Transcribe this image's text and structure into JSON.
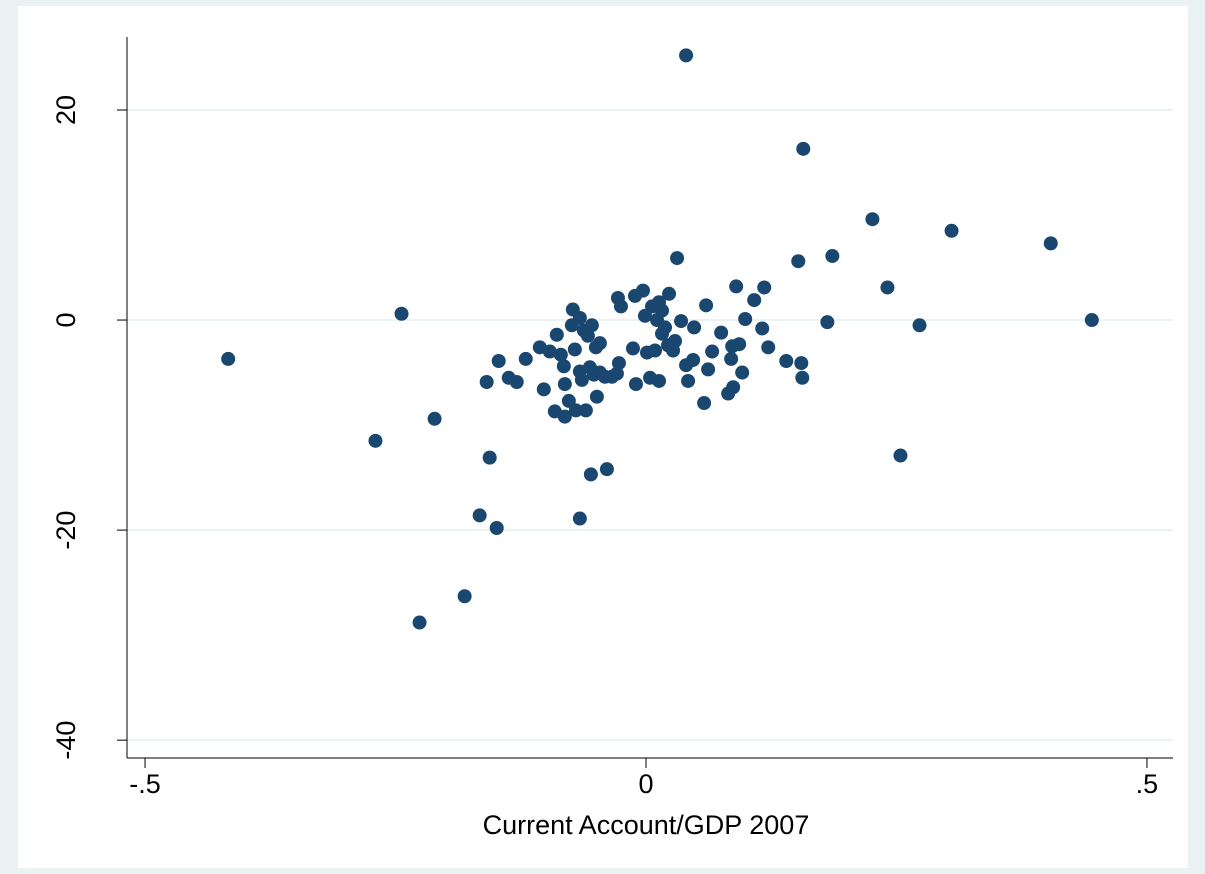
{
  "chart_data": {
    "type": "scatter",
    "x_label": "Current Account/GDP 2007",
    "color": "#1a476f",
    "grid": true,
    "xlim": [
      -0.518,
      0.526
    ],
    "ylim": [
      -41.7,
      26.95
    ],
    "xticks": [
      {
        "value": -0.5,
        "label": "-.5"
      },
      0,
      {
        "value": 0.5,
        "label": ".5"
      }
    ],
    "yticks": [
      -40,
      -20,
      0,
      20
    ],
    "x": [
      -0.417,
      -0.244,
      -0.27,
      -0.211,
      -0.226,
      -0.181,
      -0.166,
      -0.149,
      -0.156,
      -0.159,
      -0.147,
      -0.137,
      -0.129,
      -0.12,
      -0.106,
      -0.102,
      -0.096,
      -0.091,
      -0.089,
      -0.085,
      -0.082,
      -0.081,
      -0.081,
      -0.077,
      -0.073,
      -0.074,
      -0.071,
      -0.07,
      -0.066,
      -0.066,
      -0.064,
      -0.066,
      -0.062,
      -0.06,
      -0.058,
      -0.056,
      -0.055,
      -0.054,
      -0.052,
      -0.05,
      -0.049,
      -0.046,
      -0.046,
      -0.041,
      -0.039,
      -0.034,
      -0.029,
      -0.028,
      -0.027,
      -0.025,
      -0.013,
      -0.011,
      -0.01,
      -0.003,
      -0.001,
      0.001,
      0.004,
      0.006,
      0.009,
      0.011,
      0.013,
      0.013,
      0.016,
      0.016,
      0.019,
      0.022,
      0.023,
      0.027,
      0.029,
      0.031,
      0.035,
      0.04,
      0.042,
      0.04,
      0.047,
      0.048,
      0.058,
      0.06,
      0.062,
      0.066,
      0.075,
      0.082,
      0.085,
      0.086,
      0.087,
      0.09,
      0.093,
      0.096,
      0.099,
      0.108,
      0.116,
      0.118,
      0.122,
      0.14,
      0.152,
      0.155,
      0.156,
      0.157,
      0.181,
      0.186,
      0.226,
      0.241,
      0.254,
      0.273,
      0.305,
      0.404,
      0.445
    ],
    "values": [
      -3.7,
      0.6,
      -11.5,
      -9.4,
      -28.8,
      -26.3,
      -18.6,
      -19.8,
      -13.1,
      -5.9,
      -3.9,
      -5.5,
      -5.9,
      -3.7,
      -2.6,
      -6.6,
      -3.0,
      -8.7,
      -1.4,
      -3.3,
      -4.4,
      -6.1,
      -9.2,
      -7.7,
      1.0,
      -0.5,
      -2.8,
      -8.6,
      0.2,
      -4.9,
      -5.7,
      -18.9,
      -1.0,
      -8.6,
      -1.5,
      -4.5,
      -14.7,
      -0.5,
      -5.2,
      -2.6,
      -7.3,
      -2.2,
      -5.0,
      -5.4,
      -14.2,
      -5.4,
      -5.1,
      2.1,
      -4.1,
      1.3,
      -2.7,
      2.3,
      -6.1,
      2.8,
      0.4,
      -3.1,
      -5.5,
      1.3,
      -2.9,
      0.0,
      -5.8,
      1.7,
      0.9,
      -1.3,
      -0.7,
      -2.4,
      2.5,
      -2.9,
      -2.0,
      5.9,
      -0.1,
      -4.3,
      -5.8,
      25.2,
      -3.8,
      -0.7,
      -7.9,
      1.4,
      -4.7,
      -3.0,
      -1.2,
      -7.0,
      -3.7,
      -2.5,
      -6.4,
      3.2,
      -2.3,
      -5.0,
      0.1,
      1.9,
      -0.8,
      3.1,
      -2.6,
      -3.9,
      5.6,
      -4.1,
      -5.5,
      16.3,
      -0.2,
      6.1,
      9.6,
      3.1,
      -12.9,
      -0.5,
      8.5,
      7.3,
      0.0
    ]
  }
}
